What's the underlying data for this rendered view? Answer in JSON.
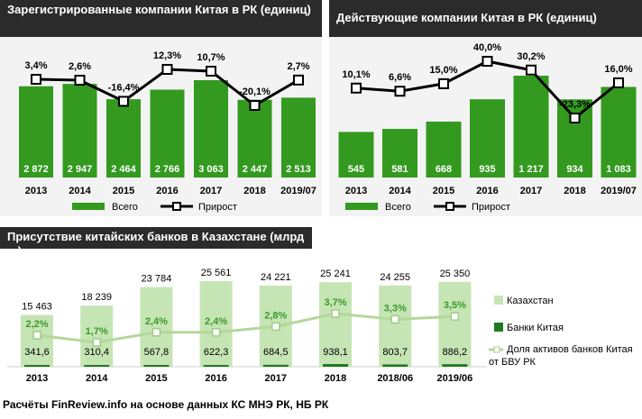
{
  "chart_data": [
    {
      "type": "bar",
      "title": "Зарегистрированные компании Китая в РК (единиц)",
      "categories": [
        "2013",
        "2014",
        "2015",
        "2016",
        "2017",
        "2018",
        "2019/07"
      ],
      "series": [
        {
          "name": "Всего",
          "kind": "bar",
          "values": [
            2872,
            2947,
            2464,
            2766,
            3063,
            2447,
            2513
          ],
          "labels": [
            "2 872",
            "2 947",
            "2 464",
            "2 766",
            "3 063",
            "2 447",
            "2 513"
          ],
          "color": "#339a1f"
        },
        {
          "name": "Прирост",
          "kind": "line",
          "values": [
            3.4,
            2.6,
            -16.4,
            12.3,
            10.7,
            -20.1,
            2.7
          ],
          "labels": [
            "3,4%",
            "2,6%",
            "-16,4%",
            "12,3%",
            "10,7%",
            "-20,1%",
            "2,7%"
          ],
          "color": "#000000"
        }
      ],
      "legend": "bottom"
    },
    {
      "type": "bar",
      "title": "Действующие  компании Китая в РК (единиц)",
      "categories": [
        "2013",
        "2014",
        "2015",
        "2016",
        "2017",
        "2018",
        "2019/07"
      ],
      "series": [
        {
          "name": "Всего",
          "kind": "bar",
          "values": [
            545,
            581,
            668,
            935,
            1217,
            934,
            1083
          ],
          "labels": [
            "545",
            "581",
            "668",
            "935",
            "1 217",
            "934",
            "1 083"
          ],
          "color": "#339a1f"
        },
        {
          "name": "Прирост",
          "kind": "line",
          "values": [
            10.1,
            6.6,
            15.0,
            40.0,
            30.2,
            -23.3,
            16.0
          ],
          "labels": [
            "10,1%",
            "6,6%",
            "15,0%",
            "40,0%",
            "30,2%",
            "-23,3%",
            "16,0%"
          ],
          "color": "#000000"
        }
      ],
      "legend": "bottom"
    },
    {
      "type": "bar",
      "title": "Присутствие  китайских банков в Казахстане (млрд тг)",
      "categories": [
        "2013",
        "2014",
        "2015",
        "2016",
        "2017",
        "2018",
        "2018/06",
        "2019/06"
      ],
      "series": [
        {
          "name": "Казахстан",
          "kind": "bar",
          "values": [
            15463,
            18239,
            23784,
            25561,
            24221,
            25241,
            24255,
            25350
          ],
          "labels": [
            "15 463",
            "18 239",
            "23 784",
            "25 561",
            "24 221",
            "25 241",
            "24 255",
            "25 350"
          ],
          "color": "#c6e5b4"
        },
        {
          "name": "Банки Китая",
          "kind": "bar",
          "values": [
            341.6,
            310.4,
            567.8,
            622.3,
            684.5,
            938.1,
            803.7,
            886.2
          ],
          "labels": [
            "341,6",
            "310,4",
            "567,8",
            "622,3",
            "684,5",
            "938,1",
            "803,7",
            "886,2"
          ],
          "color": "#1f7a1f"
        },
        {
          "name": "Доля активов банков Китая от БВУ РК",
          "kind": "line",
          "values": [
            2.2,
            1.7,
            2.4,
            2.4,
            2.8,
            3.7,
            3.3,
            3.5
          ],
          "labels": [
            "2,2%",
            "1,7%",
            "2,4%",
            "2,4%",
            "2,8%",
            "3,7%",
            "3,3%",
            "3,5%"
          ],
          "color": "#b3d89a"
        }
      ],
      "legend": "right"
    }
  ],
  "footer": "Расчёты FinReview.info  на основе данных КС МНЭ РК, НБ РК"
}
